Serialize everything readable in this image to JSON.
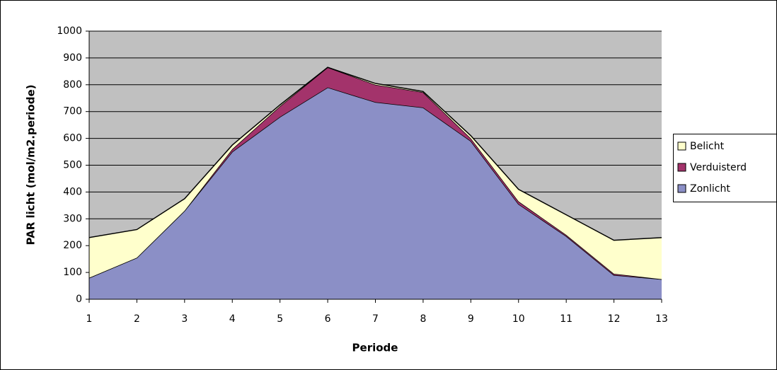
{
  "chart_data": {
    "type": "stacked-area",
    "xlabel": "Periode",
    "ylabel": "PAR licht (mol/m2.periode)",
    "categories": [
      "1",
      "2",
      "3",
      "4",
      "5",
      "6",
      "7",
      "8",
      "9",
      "10",
      "11",
      "12",
      "13"
    ],
    "series": [
      {
        "name": "Zonlicht",
        "color": "#8b8fc6",
        "values": [
          80,
          155,
          330,
          550,
          680,
          790,
          735,
          715,
          590,
          355,
          235,
          90,
          75
        ]
      },
      {
        "name": "Verduisterd",
        "color": "#a3336b",
        "values": [
          0,
          0,
          0,
          10,
          40,
          75,
          65,
          57,
          10,
          10,
          5,
          5,
          0
        ]
      },
      {
        "name": "Belicht",
        "color": "#ffffcc",
        "values": [
          150,
          105,
          45,
          15,
          5,
          0,
          5,
          3,
          10,
          45,
          75,
          125,
          155
        ]
      }
    ],
    "ylim": [
      0,
      1000
    ],
    "yticks": [
      0,
      100,
      200,
      300,
      400,
      500,
      600,
      700,
      800,
      900,
      1000
    ],
    "grid": true,
    "legend": "right"
  }
}
